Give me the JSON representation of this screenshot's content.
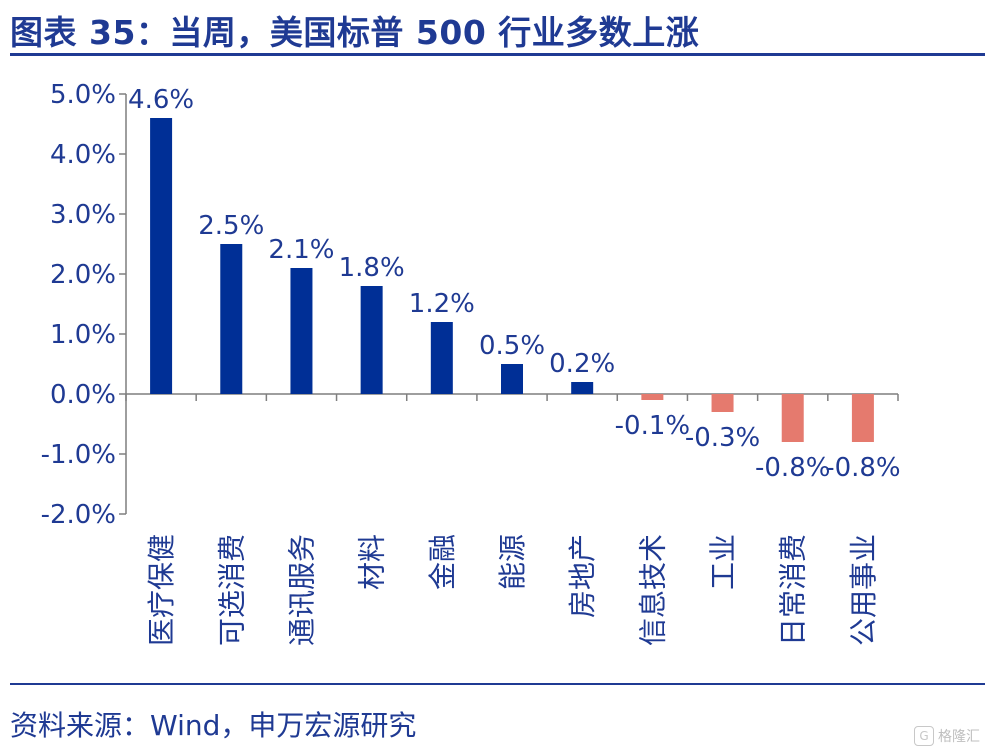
{
  "title": "图表 35：当周，美国标普 500 行业多数上涨",
  "source": "资料来源：Wind，申万宏源研究",
  "watermark": {
    "icon": "gelonghui-logo-icon",
    "text": "格隆汇"
  },
  "chart_data": {
    "type": "bar",
    "title": "",
    "xlabel": "",
    "ylabel": "",
    "categories": [
      "医疗保健",
      "可选消费",
      "通讯服务",
      "材料",
      "金融",
      "能源",
      "房地产",
      "信息技术",
      "工业",
      "日常消费",
      "公用事业"
    ],
    "values": [
      4.6,
      2.5,
      2.1,
      1.8,
      1.2,
      0.5,
      0.2,
      -0.1,
      -0.3,
      -0.8,
      -0.8
    ],
    "data_labels": [
      "4.6%",
      "2.5%",
      "2.1%",
      "1.8%",
      "1.2%",
      "0.5%",
      "0.2%",
      "-0.1%",
      "-0.3%",
      "-0.8%",
      "-0.8%"
    ],
    "yticks": [
      "5.0%",
      "4.0%",
      "3.0%",
      "2.0%",
      "1.0%",
      "0.0%",
      "-1.0%",
      "-2.0%"
    ],
    "ylim": [
      -2.0,
      5.0
    ],
    "grid": false,
    "legend": "none",
    "colors": {
      "positive": "#002f96",
      "negative": "#e57a6e"
    }
  }
}
